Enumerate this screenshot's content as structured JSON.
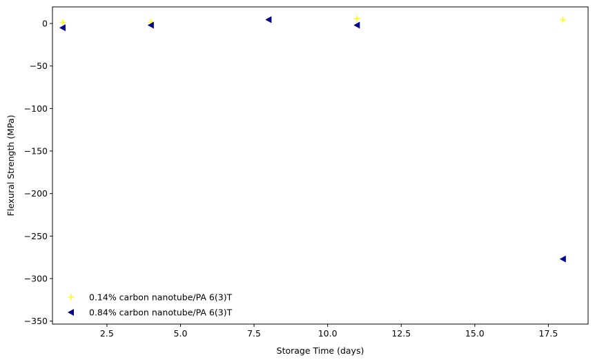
{
  "chart_data": {
    "type": "scatter",
    "xlabel": "Storage Time (days)",
    "ylabel": "Flexural Strength (MPa)",
    "xlim": [
      0.65,
      18.85
    ],
    "ylim": [
      -353.5,
      19.5
    ],
    "xticks": [
      2.5,
      5.0,
      7.5,
      10.0,
      12.5,
      15.0,
      17.5
    ],
    "xtick_labels": [
      "2.5",
      "5.0",
      "7.5",
      "10.0",
      "12.5",
      "15.0",
      "17.5"
    ],
    "yticks": [
      0,
      -50,
      -100,
      -150,
      -200,
      -250,
      -300,
      -350
    ],
    "ytick_labels": [
      "0",
      "−50",
      "−100",
      "−150",
      "−200",
      "−250",
      "−300",
      "−350"
    ],
    "grid": false,
    "legend_position": "lower-left",
    "series": [
      {
        "name": "0.14% carbon nanotube/PA 6(3)T",
        "marker": "plus",
        "color": "#ffff00",
        "x": [
          1,
          4,
          11,
          18
        ],
        "y": [
          1.5,
          1.5,
          5.5,
          4.5
        ]
      },
      {
        "name": "0.84% carbon nanotube/PA 6(3)T",
        "marker": "triangle-left",
        "color": "#00008b",
        "x": [
          1,
          4,
          8,
          11,
          18
        ],
        "y": [
          -5,
          -2,
          4.5,
          -2,
          -277
        ]
      }
    ]
  }
}
